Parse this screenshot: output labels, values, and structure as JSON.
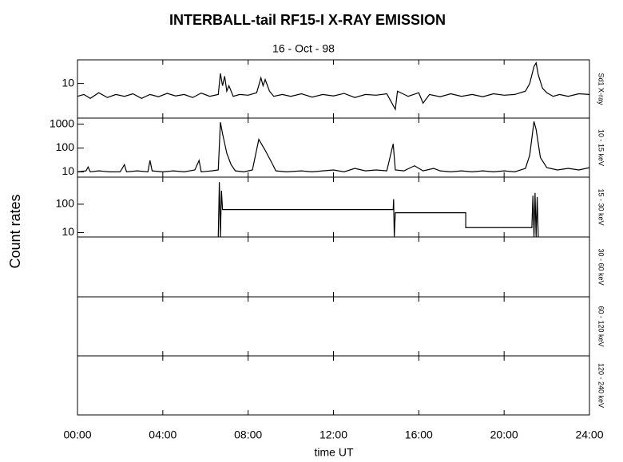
{
  "chart_data": [
    {
      "type": "line",
      "title": "INTERBALL-tail  RF15-I   X-RAY  EMISSION",
      "subtitle": "16 - Oct - 98",
      "ylabel_left": "Count  rates",
      "ylabel": "Sd1 X-ray",
      "log": true,
      "color": "#000000",
      "ylim": [
        2,
        30
      ],
      "yticks": [
        10
      ],
      "xlim": [
        0,
        24
      ],
      "x": [
        0,
        0.3,
        0.6,
        1,
        1.4,
        1.8,
        2.2,
        2.6,
        3,
        3.4,
        3.8,
        4.2,
        4.6,
        5,
        5.4,
        5.8,
        6.2,
        6.6,
        6.7,
        6.8,
        6.9,
        7,
        7.1,
        7.3,
        7.6,
        8,
        8.4,
        8.6,
        8.7,
        8.8,
        9,
        9.2,
        9.6,
        10,
        10.5,
        11,
        11.5,
        12,
        12.5,
        13,
        13.5,
        14,
        14.5,
        14.9,
        15,
        15.5,
        16,
        16.2,
        16.5,
        17,
        17.5,
        18,
        18.5,
        19,
        19.5,
        20,
        20.5,
        21,
        21.2,
        21.4,
        21.5,
        21.6,
        21.8,
        22,
        22.3,
        22.6,
        23,
        23.5,
        24
      ],
      "values": [
        5.5,
        6,
        5,
        6.5,
        5.2,
        6,
        5.5,
        6.2,
        5,
        6,
        5.4,
        6.3,
        5.6,
        6,
        5.2,
        6.4,
        5.5,
        6,
        16,
        9,
        14,
        7,
        9,
        5.5,
        6,
        5.8,
        6.5,
        13,
        9,
        12,
        7,
        5.5,
        6,
        5.5,
        6.2,
        5.3,
        6,
        5.6,
        6.3,
        5.2,
        6,
        5.8,
        6.2,
        3,
        7,
        5.5,
        6.5,
        4,
        6,
        5.4,
        6.2,
        5.5,
        6,
        5.4,
        6.2,
        5.8,
        6,
        7,
        10,
        22,
        26,
        15,
        8,
        6.5,
        5.5,
        6,
        5.5,
        6.2,
        6
      ]
    },
    {
      "type": "line",
      "ylabel": "10 - 15 keV",
      "log": true,
      "color": "#000000",
      "ylim": [
        6,
        1800
      ],
      "yticks": [
        10,
        100,
        1000
      ],
      "xlim": [
        0,
        24
      ],
      "x": [
        0,
        0.4,
        0.5,
        0.6,
        1,
        1.5,
        2,
        2.2,
        2.3,
        2.8,
        3.3,
        3.4,
        3.5,
        4,
        4.5,
        5,
        5.5,
        5.7,
        5.8,
        6.3,
        6.6,
        6.7,
        6.8,
        7,
        7.2,
        7.4,
        7.8,
        8.2,
        8.5,
        8.8,
        9.1,
        9.3,
        9.8,
        10.5,
        11,
        11.5,
        12,
        12.5,
        13,
        13.5,
        14,
        14.5,
        14.8,
        14.9,
        15.3,
        15.8,
        16.2,
        16.7,
        17,
        17.5,
        18,
        18.5,
        19,
        19.5,
        20,
        20.5,
        21,
        21.2,
        21.4,
        21.5,
        21.7,
        22,
        22.5,
        23,
        23.5,
        24
      ],
      "values": [
        10,
        11,
        16,
        10,
        11,
        10,
        10,
        20,
        10,
        11,
        10,
        30,
        11,
        10,
        11,
        10,
        12,
        30,
        10,
        11,
        12,
        1200,
        400,
        60,
        20,
        11,
        10,
        12,
        230,
        80,
        25,
        11,
        10,
        11,
        10,
        11,
        12,
        10,
        14,
        11,
        12,
        11,
        150,
        12,
        11,
        18,
        11,
        14,
        11,
        10,
        11,
        10,
        11,
        10,
        11,
        10,
        14,
        50,
        1300,
        600,
        40,
        15,
        12,
        14,
        12,
        15
      ]
    },
    {
      "type": "line",
      "ylabel": "15 - 30 keV",
      "log": true,
      "color": "#000000",
      "ylim": [
        7,
        900
      ],
      "yticks": [
        10,
        100
      ],
      "xlim": [
        0,
        24
      ],
      "x": [
        6.6,
        6.65,
        6.7,
        6.75,
        6.8,
        14.8,
        14.82,
        14.85,
        14.9,
        18.2,
        18.2,
        21.3,
        21.35,
        21.4,
        21.45,
        21.5,
        21.55,
        21.6
      ],
      "values": [
        7,
        600,
        7,
        300,
        65,
        65,
        150,
        7,
        50,
        50,
        15,
        15,
        200,
        7,
        250,
        7,
        180,
        7
      ]
    },
    {
      "type": "line",
      "ylabel": "30 - 60 keV",
      "xlim": [
        0,
        24
      ]
    },
    {
      "type": "line",
      "ylabel": "60 - 120 keV",
      "xlim": [
        0,
        24
      ]
    },
    {
      "type": "line",
      "ylabel": "120 - 240 keV",
      "xlim": [
        0,
        24
      ],
      "xlabel": "time UT",
      "xticks": [
        {
          "value": 0,
          "label": "00:00"
        },
        {
          "value": 4,
          "label": "04:00"
        },
        {
          "value": 8,
          "label": "08:00"
        },
        {
          "value": 12,
          "label": "12:00"
        },
        {
          "value": 16,
          "label": "16:00"
        },
        {
          "value": 20,
          "label": "20:00"
        },
        {
          "value": 24,
          "label": "24:00"
        }
      ]
    }
  ]
}
